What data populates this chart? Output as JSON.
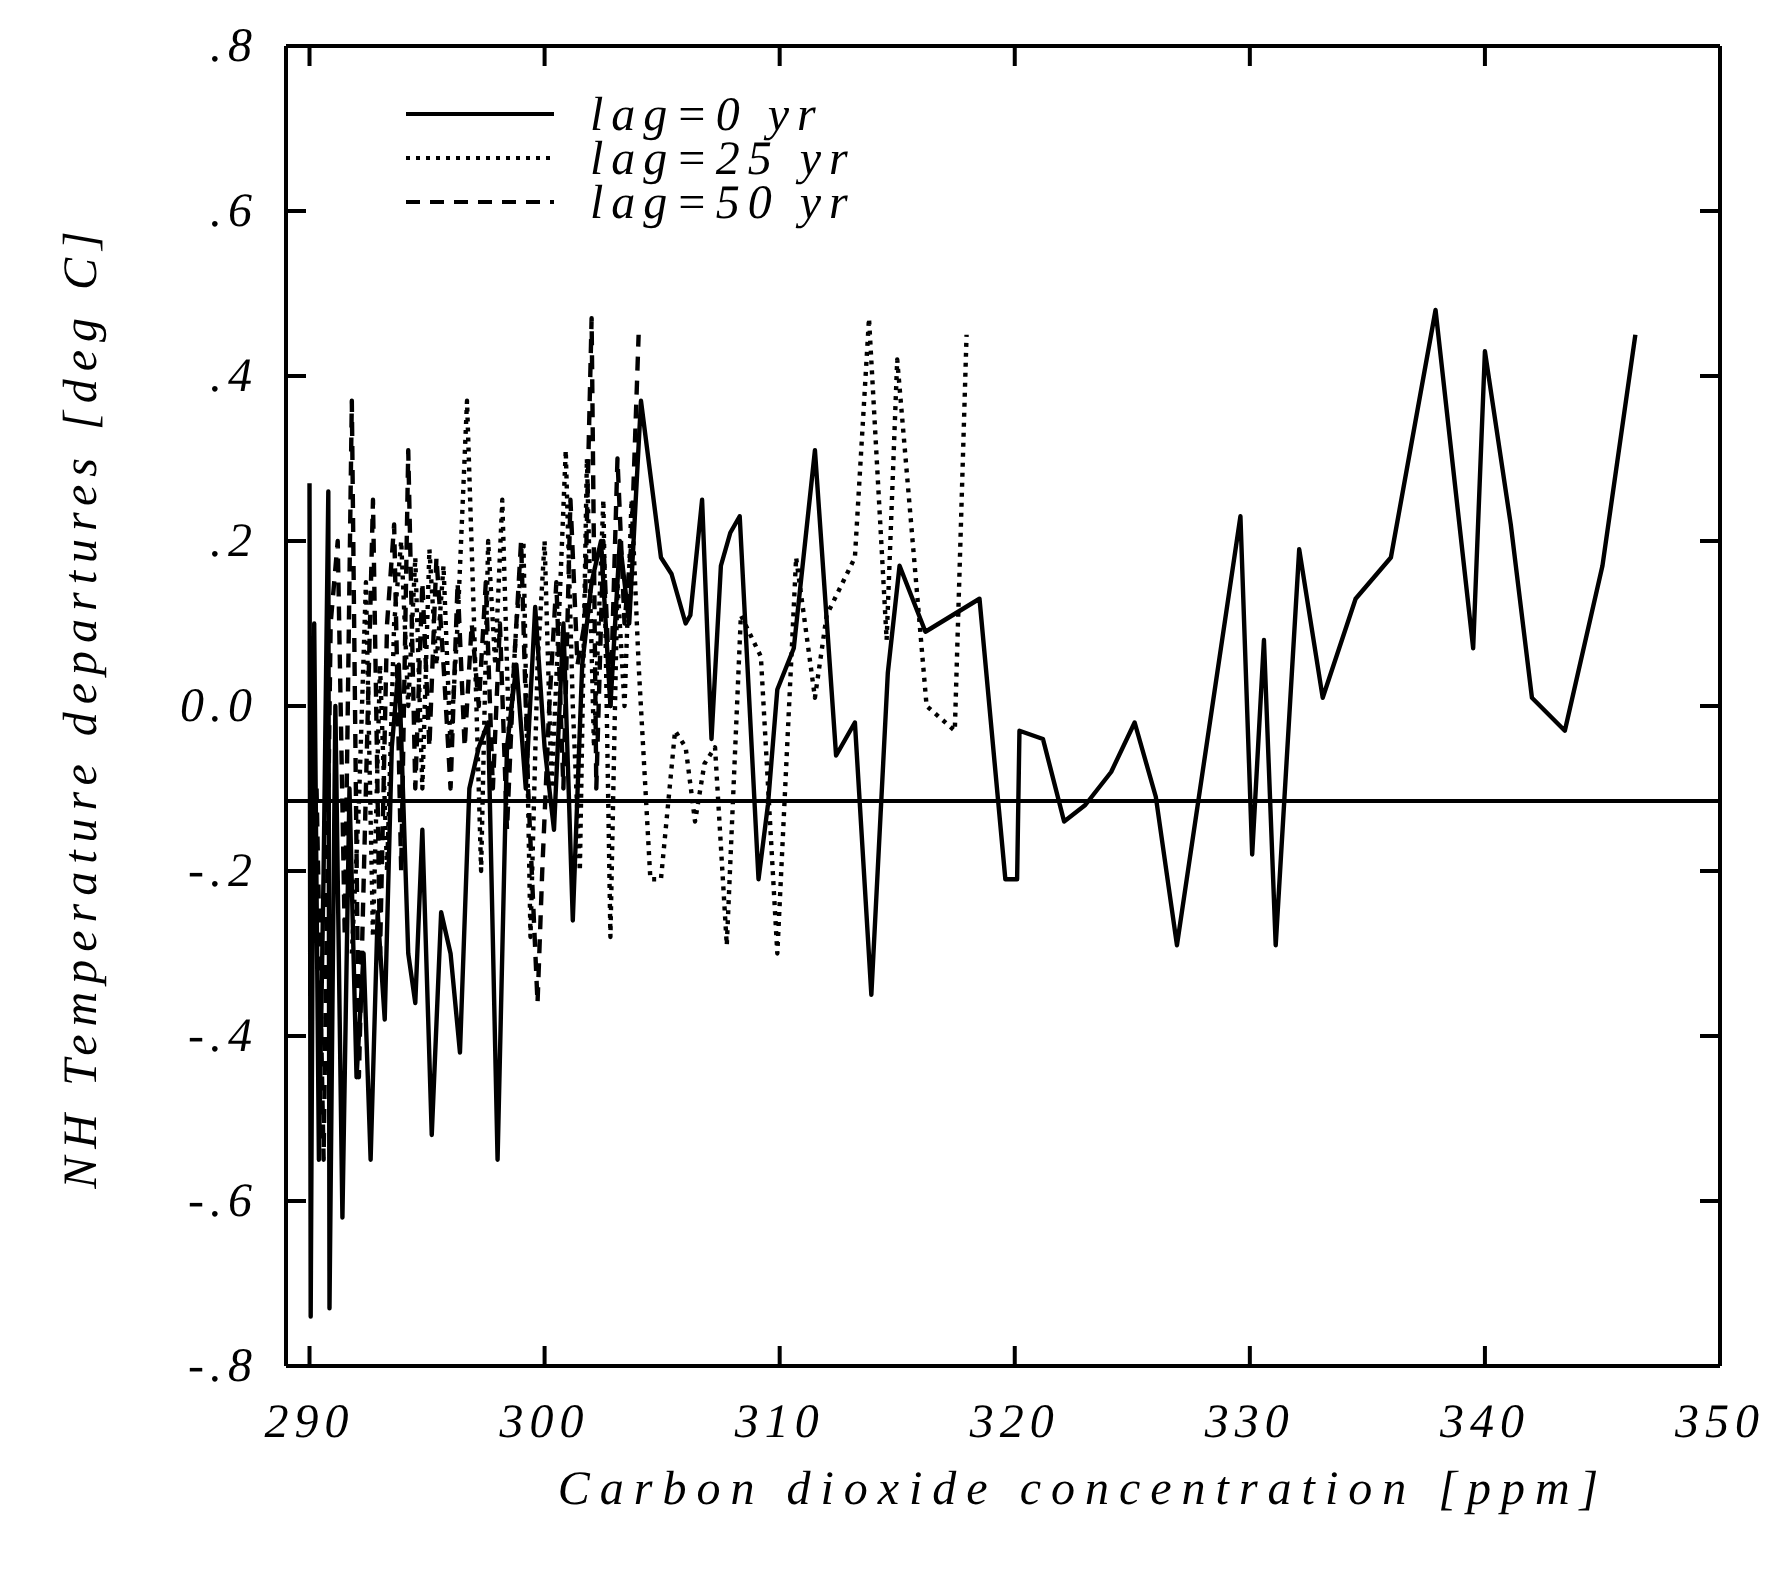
{
  "chart_data": {
    "type": "line",
    "xlabel": "Carbon dioxide concentration [ppm]",
    "ylabel": "NH Temperature departures [deg C]",
    "xlim": [
      289,
      350
    ],
    "xticks": [
      290,
      300,
      310,
      320,
      330,
      340,
      350
    ],
    "ylim": [
      -0.8,
      0.8
    ],
    "yticks": [
      {
        "value": -0.8,
        "label": "-.8"
      },
      {
        "value": -0.6,
        "label": "-.6"
      },
      {
        "value": -0.4,
        "label": "-.4"
      },
      {
        "value": -0.2,
        "label": "-.2"
      },
      {
        "value": 0,
        "label": "0.0"
      },
      {
        "value": 0.2,
        "label": ".2"
      },
      {
        "value": 0.4,
        "label": ".4"
      },
      {
        "value": 0.6,
        "label": ".6"
      },
      {
        "value": 0.8,
        "label": ".8"
      }
    ],
    "grid": false,
    "legend": "top left",
    "marker": "none",
    "ref_lines": [
      {
        "axis": "y",
        "value": -0.115,
        "color": "#000000"
      }
    ],
    "series": [
      {
        "name": "lag=0 yr",
        "color": "#000000",
        "line_style": "solid",
        "x": [
          290.0,
          290.05,
          290.2,
          290.4,
          290.6,
          290.8,
          290.85,
          291.1,
          291.4,
          291.7,
          292.0,
          292.3,
          292.6,
          292.9,
          293.2,
          293.5,
          293.8,
          294.2,
          294.5,
          294.8,
          295.2,
          295.6,
          296.0,
          296.4,
          296.8,
          297.2,
          297.6,
          298.0,
          298.4,
          298.8,
          299.2,
          299.6,
          300.0,
          300.4,
          300.8,
          301.2,
          301.6,
          302.0,
          302.4,
          302.8,
          303.2,
          303.6,
          304.1,
          304.95,
          305.4,
          306.0,
          306.2,
          306.7,
          307.1,
          307.5,
          307.9,
          308.3,
          309.1,
          309.5,
          309.9,
          310.6,
          311.5,
          312.4,
          313.2,
          313.9,
          314.6,
          315.1,
          316.2,
          318.5,
          319.6,
          320.1,
          320.2,
          321.2,
          322.1,
          323.0,
          324.1,
          325.1,
          326.0,
          326.9,
          329.6,
          330.1,
          330.6,
          331.1,
          332.1,
          333.1,
          334.5,
          336.0,
          337.9,
          339.5,
          340.0,
          341.1,
          342.0,
          343.4,
          345.0,
          346.4
        ],
        "values": [
          0.27,
          -0.74,
          0.1,
          -0.55,
          -0.2,
          0.26,
          -0.73,
          0.0,
          -0.62,
          -0.1,
          -0.45,
          -0.3,
          -0.55,
          -0.25,
          -0.38,
          -0.05,
          0.05,
          -0.3,
          -0.36,
          -0.15,
          -0.52,
          -0.25,
          -0.3,
          -0.42,
          -0.1,
          -0.05,
          -0.02,
          -0.55,
          -0.05,
          0.05,
          -0.1,
          0.12,
          -0.05,
          -0.15,
          0.1,
          -0.26,
          0.05,
          0.15,
          0.2,
          0.0,
          0.2,
          0.1,
          0.37,
          0.18,
          0.16,
          0.1,
          0.11,
          0.25,
          -0.04,
          0.17,
          0.21,
          0.23,
          -0.21,
          -0.12,
          0.02,
          0.07,
          0.31,
          -0.06,
          -0.02,
          -0.35,
          0.04,
          0.17,
          0.09,
          0.13,
          -0.21,
          -0.21,
          -0.03,
          -0.04,
          -0.14,
          -0.12,
          -0.08,
          -0.02,
          -0.11,
          -0.29,
          0.23,
          -0.18,
          0.08,
          -0.29,
          0.19,
          0.01,
          0.13,
          0.18,
          0.48,
          0.07,
          0.43,
          0.22,
          0.01,
          -0.03,
          0.17,
          0.45
        ]
      },
      {
        "name": "lag=25 yr",
        "color": "#000000",
        "line_style": "dotted",
        "x": [
          291.8,
          292.1,
          292.4,
          292.7,
          293.0,
          293.3,
          293.6,
          293.9,
          294.2,
          294.5,
          294.8,
          295.1,
          295.4,
          295.7,
          296.0,
          296.3,
          296.7,
          297.0,
          297.3,
          297.6,
          297.9,
          298.2,
          298.5,
          298.8,
          299.1,
          299.4,
          299.7,
          300.0,
          300.3,
          300.6,
          300.9,
          301.2,
          301.5,
          301.8,
          302.1,
          302.5,
          302.8,
          303.1,
          303.4,
          303.7,
          304.0,
          304.5,
          304.95,
          305.55,
          306.0,
          306.4,
          306.8,
          307.25,
          307.75,
          308.35,
          309.2,
          309.9,
          310.7,
          311.5,
          312.0,
          313.2,
          313.8,
          314.55,
          315.0,
          316.25,
          317.45,
          317.95
        ],
        "values": [
          -0.3,
          -0.12,
          0.15,
          -0.28,
          0.05,
          -0.2,
          0.1,
          0.2,
          0.0,
          0.18,
          -0.1,
          0.19,
          0.05,
          0.17,
          -0.05,
          0.1,
          0.37,
          0.1,
          -0.2,
          0.2,
          0.05,
          0.25,
          -0.05,
          0.1,
          0.2,
          -0.28,
          0.05,
          0.2,
          -0.1,
          0.1,
          0.31,
          0.0,
          -0.2,
          0.3,
          -0.05,
          0.25,
          -0.28,
          0.15,
          0.0,
          0.25,
          0.05,
          -0.21,
          -0.21,
          -0.03,
          -0.05,
          -0.14,
          -0.07,
          -0.05,
          -0.29,
          0.11,
          0.06,
          -0.3,
          0.18,
          0.01,
          0.11,
          0.18,
          0.47,
          0.08,
          0.42,
          0.0,
          -0.03,
          0.45
        ]
      },
      {
        "name": "lag=50 yr",
        "color": "#000000",
        "line_style": "dashed",
        "x": [
          290.3,
          290.6,
          290.9,
          291.2,
          291.5,
          291.8,
          292.1,
          292.4,
          292.7,
          293.0,
          293.3,
          293.6,
          293.9,
          294.2,
          294.5,
          294.8,
          295.1,
          295.4,
          295.7,
          296.0,
          296.3,
          296.6,
          296.9,
          297.2,
          297.5,
          297.8,
          298.1,
          298.4,
          298.7,
          299.0,
          299.3,
          299.7,
          299.9,
          300.2,
          300.5,
          300.8,
          301.1,
          301.4,
          301.7,
          302.0,
          302.2,
          302.5,
          302.8,
          303.1,
          303.4,
          303.7,
          304.0
        ],
        "values": [
          -0.1,
          -0.55,
          0.1,
          0.2,
          -0.28,
          0.37,
          -0.45,
          -0.1,
          0.25,
          -0.3,
          0.1,
          0.22,
          -0.2,
          0.31,
          -0.1,
          0.15,
          -0.05,
          0.18,
          0.05,
          -0.1,
          0.15,
          -0.05,
          0.1,
          0.0,
          0.15,
          -0.1,
          0.1,
          -0.15,
          0.05,
          0.2,
          -0.1,
          -0.36,
          -0.2,
          0.0,
          0.15,
          -0.1,
          0.25,
          0.05,
          0.1,
          0.47,
          -0.1,
          0.2,
          0.0,
          0.3,
          0.1,
          0.2,
          0.45
        ]
      }
    ]
  }
}
